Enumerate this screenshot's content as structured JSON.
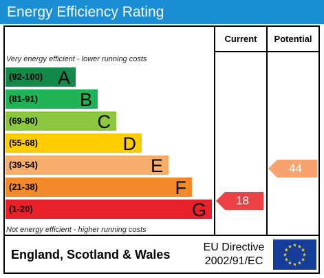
{
  "title": "Energy Efficiency Rating",
  "columns": {
    "current": "Current",
    "potential": "Potential"
  },
  "notes": {
    "top": "Very energy efficient - lower running costs",
    "bottom": "Not energy efficient - higher running costs"
  },
  "bands": [
    {
      "range": "(92-100)",
      "letter": "A",
      "color": "#138a4a"
    },
    {
      "range": "(81-91)",
      "letter": "B",
      "color": "#1db356"
    },
    {
      "range": "(69-80)",
      "letter": "C",
      "color": "#8dc63f"
    },
    {
      "range": "(55-68)",
      "letter": "D",
      "color": "#ffcc00"
    },
    {
      "range": "(39-54)",
      "letter": "E",
      "color": "#f7ad6b"
    },
    {
      "range": "(21-38)",
      "letter": "F",
      "color": "#f28a2a"
    },
    {
      "range": "(1-20)",
      "letter": "G",
      "color": "#e8202a"
    }
  ],
  "ratings": {
    "current": {
      "value": "18",
      "band": "G",
      "color": "#ec4145"
    },
    "potential": {
      "value": "44",
      "band": "E",
      "color": "#f7a370"
    }
  },
  "footer": {
    "region": "England, Scotland & Wales",
    "directive_line1": "EU Directive",
    "directive_line2": "2002/91/EC"
  },
  "colors": {
    "header": "#1a8fd5",
    "eu_flag_bg": "#153c99",
    "eu_stars": "#ffdd00"
  }
}
